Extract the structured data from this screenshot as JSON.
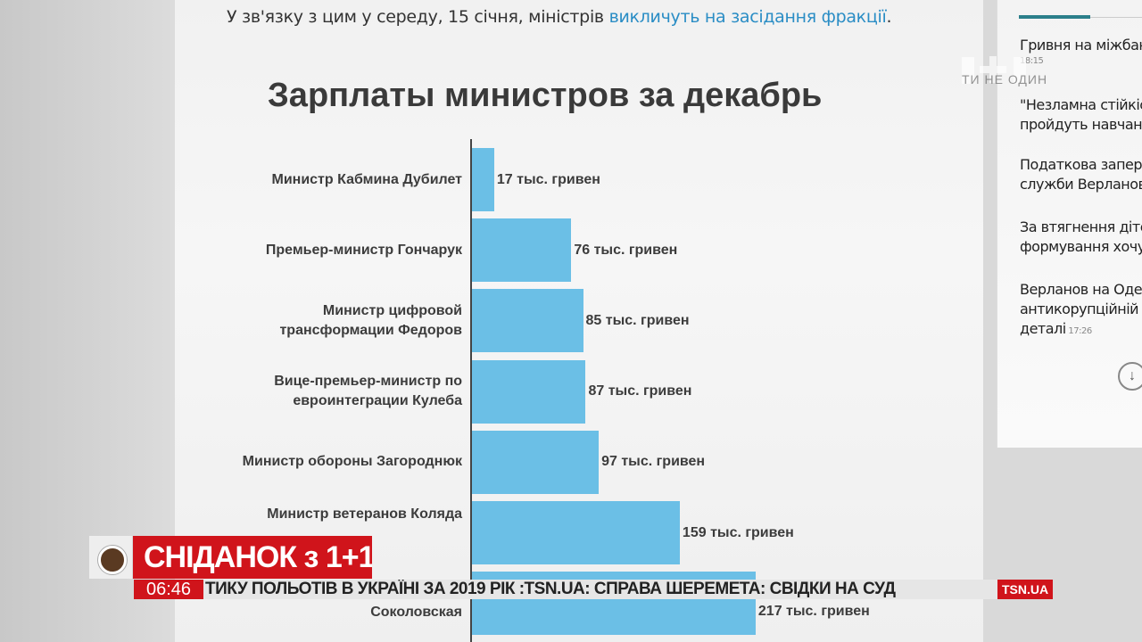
{
  "article": {
    "intro_text": "У зв'язку з цим у середу, 15 січня, міністрів ",
    "intro_link": "викличуть на засідання фракції",
    "intro_end": "."
  },
  "chart_data": {
    "type": "bar",
    "orientation": "horizontal",
    "title": "Зарплаты министров за декабрь",
    "categories": [
      "Министр Кабмина Дубилет",
      "Премьер-министр Гончарук",
      "Министр цифровой трансформации Федоров",
      "Вице-премьер-министр по евроинтеграции Кулеба",
      "Министр обороны Загороднюк",
      "Министр ветеранов Коляда",
      "Соколовская"
    ],
    "values": [
      17,
      76,
      85,
      87,
      97,
      159,
      217
    ],
    "data_labels": [
      "17 тыс. гривен",
      "76 тыс. гривен",
      "85 тыс. гривен",
      "87 тыс. гривен",
      "97 тыс. гривен",
      "159 тыс. гривен",
      "217 тыс. гривен"
    ],
    "unit": "тыс. гривен",
    "grid": false,
    "bar_color": "#6bbfe6"
  },
  "sidebar": {
    "news": [
      {
        "text": "Гривня на міжбан",
        "time": "18:15"
      },
      {
        "text": "\"Незламна стійкіс\nпройдуть навчанн"
      },
      {
        "text": "Податкова запере\nслужби Верланов"
      },
      {
        "text": "За втягнення діте\nформування хочу"
      },
      {
        "text": "Верланов на Оде\nантикорупційній\nдеталі",
        "time": "17:26"
      }
    ],
    "scroll_icon": "arrow-down-circle-icon"
  },
  "watermark": {
    "logo": "1+1",
    "slogan": "ТИ НЕ ОДИН"
  },
  "broadcast": {
    "show_logo": "СНІДАНОК з 1+1",
    "clock": "06:46",
    "ticker": "ТИКУ ПОЛЬОТІВ В УКРАЇНІ ЗА 2019 РІК      :TSN.UA:      СПРАВА ШЕРЕМЕТА: СВІДКИ НА СУД",
    "channel_badge": "TSN.UA",
    "brand_color": "#d0141b"
  }
}
